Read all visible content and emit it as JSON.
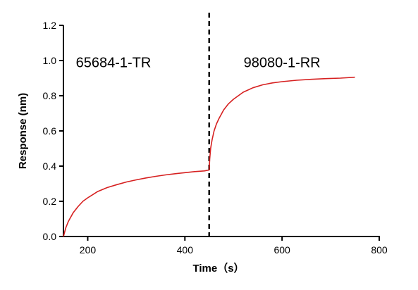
{
  "chart_data": {
    "type": "line",
    "xlabel": "Time（s）",
    "ylabel": "Response (nm)",
    "xlim": [
      150,
      800
    ],
    "ylim": [
      0,
      1.2
    ],
    "x_ticks": [
      200,
      400,
      600,
      800
    ],
    "y_ticks": [
      0.0,
      0.2,
      0.4,
      0.6,
      0.8,
      1.0,
      1.2
    ],
    "x_tick_labels": [
      "200",
      "400",
      "600",
      "800"
    ],
    "y_tick_labels": [
      "0.0",
      "0.2",
      "0.4",
      "0.6",
      "0.8",
      "1.0",
      "1.2"
    ],
    "grid": false,
    "line_color": "#d62020",
    "divider": {
      "x": 450,
      "style": "dashed"
    },
    "annotations": [
      {
        "text": "65684-1-TR",
        "x": 253,
        "y": 0.99
      },
      {
        "text": "98080-1-RR",
        "x": 600,
        "y": 0.99
      }
    ],
    "series": [
      {
        "x": [
          150,
          155,
          160,
          165,
          170,
          180,
          190,
          200,
          220,
          240,
          260,
          280,
          300,
          320,
          340,
          360,
          380,
          400,
          420,
          440,
          450,
          451,
          453,
          456,
          460,
          465,
          470,
          480,
          490,
          500,
          520,
          540,
          560,
          580,
          600,
          630,
          660,
          690,
          720,
          750
        ],
        "y": [
          0.0,
          0.05,
          0.085,
          0.11,
          0.135,
          0.17,
          0.2,
          0.22,
          0.255,
          0.278,
          0.295,
          0.31,
          0.322,
          0.333,
          0.342,
          0.35,
          0.357,
          0.363,
          0.369,
          0.373,
          0.378,
          0.44,
          0.5,
          0.55,
          0.6,
          0.64,
          0.67,
          0.72,
          0.755,
          0.78,
          0.82,
          0.845,
          0.862,
          0.873,
          0.88,
          0.888,
          0.893,
          0.897,
          0.9,
          0.905
        ]
      }
    ]
  }
}
